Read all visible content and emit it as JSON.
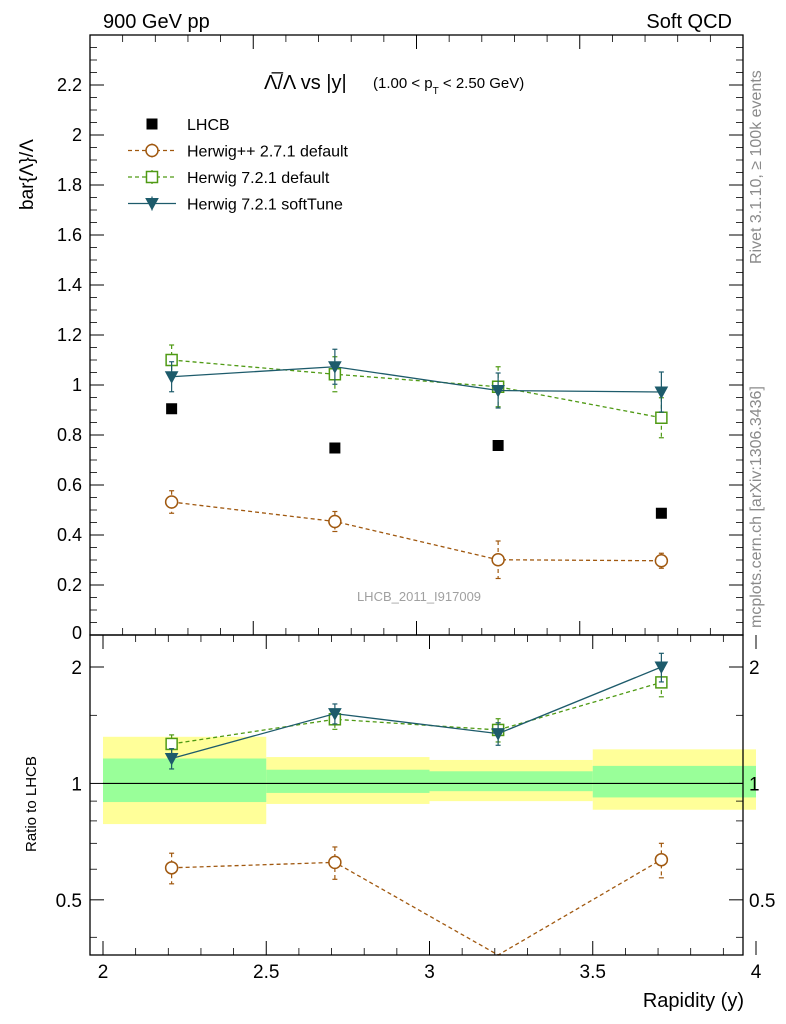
{
  "header": {
    "left": "900 GeV pp",
    "right": "Soft QCD"
  },
  "side_labels": {
    "rivet": "Rivet 3.1.10, ≥ 100k events",
    "mcplots": "mcplots.cern.ch [arXiv:1306.3436]"
  },
  "chart_data": [
    {
      "type": "scatter",
      "title_main": "Λ̅/Λ vs |y|",
      "title_sub": "(1.00 < p",
      "title_sub_T": "T",
      "title_sub_end": " < 2.50 GeV)",
      "ylabel": "bar{Λ}/Λ",
      "watermark": "LHCB_2011_I917009",
      "xlim": [
        2,
        4
      ],
      "ylim": [
        0,
        2.4
      ],
      "yticks": [
        0.2,
        0.4,
        0.6,
        0.8,
        1,
        1.2,
        1.4,
        1.6,
        1.8,
        2,
        2.2
      ],
      "ytick_labels": [
        "0.2",
        "0.4",
        "0.6",
        "0.8",
        "1",
        "1.2",
        "1.4",
        "1.6",
        "1.8",
        "2",
        "2.2"
      ],
      "y_zero_label": "0",
      "legend_position": "top-left",
      "x": [
        2.25,
        2.75,
        3.25,
        3.75
      ],
      "series": [
        {
          "name": "LHCB",
          "style": "data",
          "color": "#000000",
          "values": [
            0.905,
            0.748,
            0.758,
            0.487
          ],
          "err": [
            0,
            0,
            0,
            0
          ]
        },
        {
          "name": "Herwig++ 2.7.1 default",
          "style": "circle",
          "color": "#a0580f",
          "values": [
            0.532,
            0.454,
            0.301,
            0.297
          ],
          "err": [
            0.045,
            0.04,
            0.075,
            0.03
          ]
        },
        {
          "name": "Herwig 7.2.1 default",
          "style": "square",
          "color": "#4f9a14",
          "values": [
            1.1,
            1.043,
            0.993,
            0.869
          ],
          "err": [
            0.06,
            0.07,
            0.08,
            0.08
          ]
        },
        {
          "name": "Herwig 7.2.1 softTune",
          "style": "triangle",
          "color": "#1d5b6b",
          "values": [
            1.033,
            1.073,
            0.978,
            0.972
          ],
          "err": [
            0.06,
            0.07,
            0.07,
            0.08
          ]
        }
      ]
    },
    {
      "type": "scatter",
      "ylabel": "Ratio to LHCB",
      "xlabel": "Rapidity (y)",
      "xlim": [
        2,
        4
      ],
      "ylim": [
        0.36,
        2.42
      ],
      "log_y": true,
      "xticks": [
        2,
        2.5,
        3,
        3.5,
        4
      ],
      "xtick_labels": [
        "2",
        "2.5",
        "3",
        "3.5",
        "4"
      ],
      "yticks": [
        0.5,
        1,
        2
      ],
      "ytick_labels": [
        "0.5",
        "1",
        "2"
      ],
      "bands": [
        {
          "x0": 2.0,
          "x1": 2.5,
          "inner": [
            0.895,
            1.16
          ],
          "outer": [
            0.785,
            1.32
          ]
        },
        {
          "x0": 2.5,
          "x1": 3.0,
          "inner": [
            0.945,
            1.085
          ],
          "outer": [
            0.885,
            1.17
          ]
        },
        {
          "x0": 3.0,
          "x1": 3.5,
          "inner": [
            0.955,
            1.075
          ],
          "outer": [
            0.9,
            1.15
          ]
        },
        {
          "x0": 3.5,
          "x1": 4.0,
          "inner": [
            0.92,
            1.11
          ],
          "outer": [
            0.855,
            1.225
          ]
        }
      ],
      "x": [
        2.25,
        2.75,
        3.25,
        3.75
      ],
      "series": [
        {
          "name": "Herwig++ 2.7.1 default",
          "style": "circle",
          "color": "#a0580f",
          "values": [
            0.605,
            0.625,
            0.345,
            0.635
          ],
          "err": [
            0.055,
            0.06,
            0.0,
            0.065
          ]
        },
        {
          "name": "Herwig 7.2.1 default",
          "style": "square",
          "color": "#4f9a14",
          "values": [
            1.265,
            1.465,
            1.375,
            1.825
          ],
          "err": [
            0.07,
            0.085,
            0.095,
            0.15
          ]
        },
        {
          "name": "Herwig 7.2.1 softTune",
          "style": "triangle",
          "color": "#1d5b6b",
          "values": [
            1.16,
            1.515,
            1.345,
            2.0
          ],
          "err": [
            0.07,
            0.09,
            0.09,
            0.17
          ]
        }
      ]
    }
  ]
}
